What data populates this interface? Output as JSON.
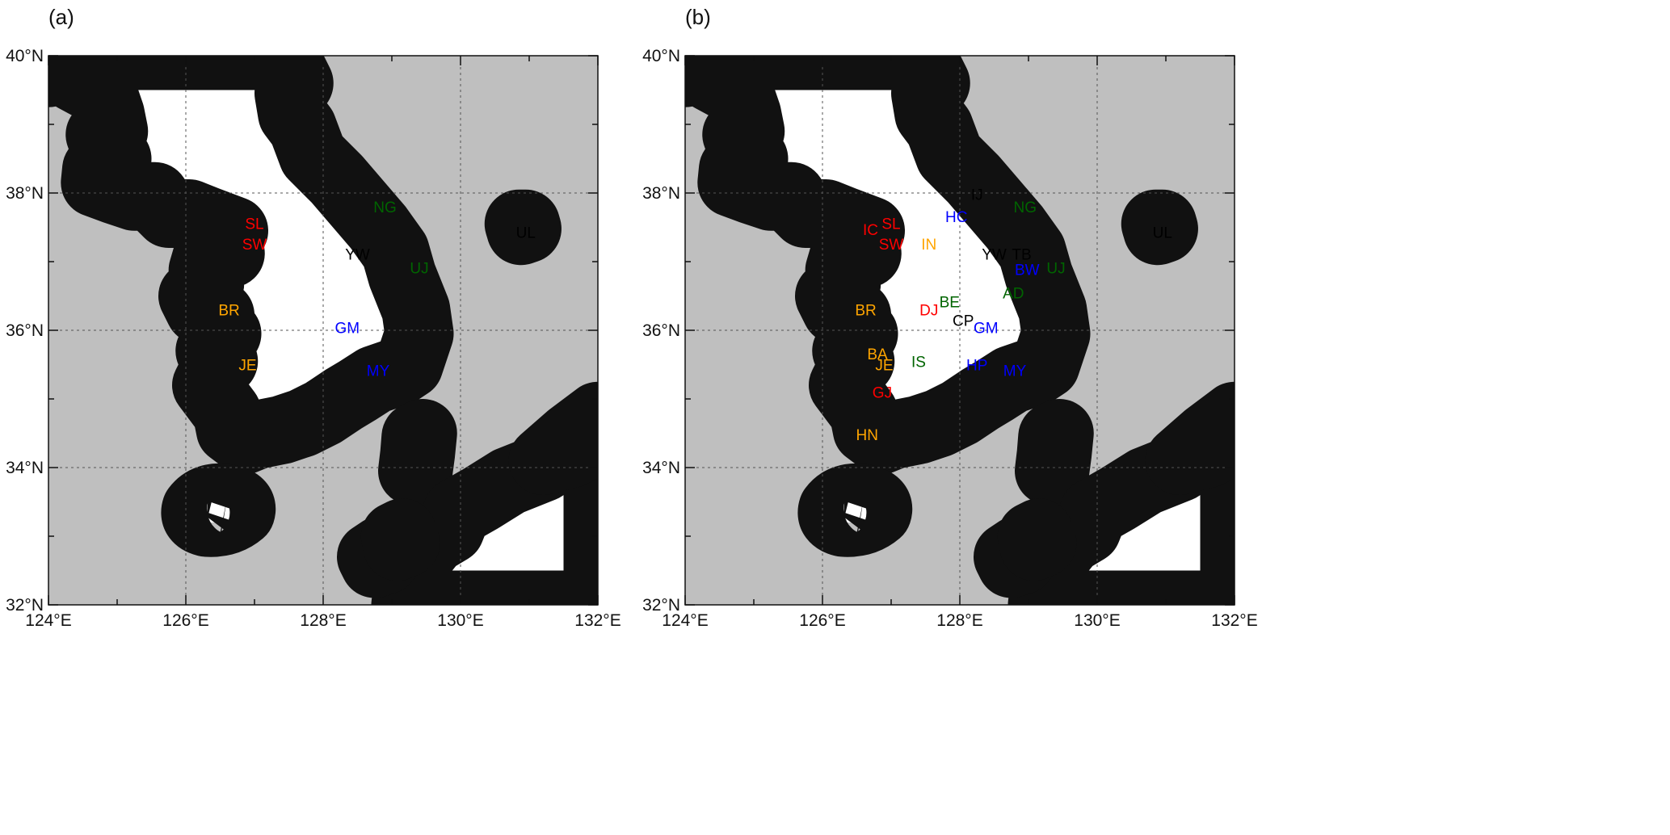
{
  "colors": {
    "red": "#ff0000",
    "orange": "#ffa500",
    "green": "#006400",
    "blue": "#0000ff",
    "black": "#000000",
    "sea": "#bfbfbf",
    "land": "#ffffff"
  },
  "map": {
    "lon_range": [
      124,
      132
    ],
    "lat_range": [
      32,
      40
    ],
    "lon_ticks": [
      124,
      126,
      128,
      130,
      132
    ],
    "lat_ticks": [
      32,
      34,
      36,
      38,
      40
    ],
    "lon_tick_labels": [
      "124°E",
      "126°E",
      "128°E",
      "130°E",
      "132°E"
    ],
    "lat_tick_labels": [
      "32°N",
      "34°N",
      "36°N",
      "38°N",
      "40°N"
    ]
  },
  "panels": [
    {
      "label": "(a)",
      "stations": [
        {
          "code": "SL",
          "lon": 127.0,
          "lat": 37.56,
          "color": "red"
        },
        {
          "code": "SW",
          "lon": 127.0,
          "lat": 37.26,
          "color": "red"
        },
        {
          "code": "NG",
          "lon": 128.9,
          "lat": 37.8,
          "color": "green"
        },
        {
          "code": "YW",
          "lon": 128.5,
          "lat": 37.11,
          "color": "black"
        },
        {
          "code": "UJ",
          "lon": 129.4,
          "lat": 36.91,
          "color": "green"
        },
        {
          "code": "UL",
          "lon": 130.95,
          "lat": 37.43,
          "color": "black"
        },
        {
          "code": "BR",
          "lon": 126.63,
          "lat": 36.3,
          "color": "orange"
        },
        {
          "code": "GM",
          "lon": 128.35,
          "lat": 36.04,
          "color": "blue"
        },
        {
          "code": "JE",
          "lon": 126.9,
          "lat": 35.5,
          "color": "orange"
        },
        {
          "code": "MY",
          "lon": 128.8,
          "lat": 35.42,
          "color": "blue"
        }
      ]
    },
    {
      "label": "(b)",
      "stations": [
        {
          "code": "IJ",
          "lon": 128.25,
          "lat": 37.98,
          "color": "black"
        },
        {
          "code": "SL",
          "lon": 127.0,
          "lat": 37.56,
          "color": "red"
        },
        {
          "code": "IC",
          "lon": 126.7,
          "lat": 37.47,
          "color": "red"
        },
        {
          "code": "HC",
          "lon": 127.95,
          "lat": 37.66,
          "color": "blue"
        },
        {
          "code": "NG",
          "lon": 128.95,
          "lat": 37.8,
          "color": "green"
        },
        {
          "code": "SW",
          "lon": 127.0,
          "lat": 37.26,
          "color": "red"
        },
        {
          "code": "IN",
          "lon": 127.55,
          "lat": 37.26,
          "color": "orange"
        },
        {
          "code": "YW",
          "lon": 128.5,
          "lat": 37.11,
          "color": "black"
        },
        {
          "code": "TB",
          "lon": 128.9,
          "lat": 37.11,
          "color": "black"
        },
        {
          "code": "BW",
          "lon": 128.98,
          "lat": 36.89,
          "color": "blue"
        },
        {
          "code": "UJ",
          "lon": 129.4,
          "lat": 36.91,
          "color": "green"
        },
        {
          "code": "UL",
          "lon": 130.95,
          "lat": 37.43,
          "color": "black"
        },
        {
          "code": "AD",
          "lon": 128.78,
          "lat": 36.55,
          "color": "green"
        },
        {
          "code": "BE",
          "lon": 127.85,
          "lat": 36.42,
          "color": "green"
        },
        {
          "code": "DJ",
          "lon": 127.55,
          "lat": 36.3,
          "color": "red"
        },
        {
          "code": "BR",
          "lon": 126.63,
          "lat": 36.3,
          "color": "orange"
        },
        {
          "code": "CP",
          "lon": 128.05,
          "lat": 36.15,
          "color": "black"
        },
        {
          "code": "GM",
          "lon": 128.38,
          "lat": 36.04,
          "color": "blue"
        },
        {
          "code": "BA",
          "lon": 126.8,
          "lat": 35.66,
          "color": "orange"
        },
        {
          "code": "IS",
          "lon": 127.4,
          "lat": 35.55,
          "color": "green"
        },
        {
          "code": "JE",
          "lon": 126.9,
          "lat": 35.5,
          "color": "orange"
        },
        {
          "code": "HP",
          "lon": 128.25,
          "lat": 35.5,
          "color": "blue"
        },
        {
          "code": "MY",
          "lon": 128.8,
          "lat": 35.42,
          "color": "blue"
        },
        {
          "code": "GJ",
          "lon": 126.87,
          "lat": 35.1,
          "color": "red"
        },
        {
          "code": "HN",
          "lon": 126.65,
          "lat": 34.48,
          "color": "orange"
        }
      ]
    }
  ]
}
